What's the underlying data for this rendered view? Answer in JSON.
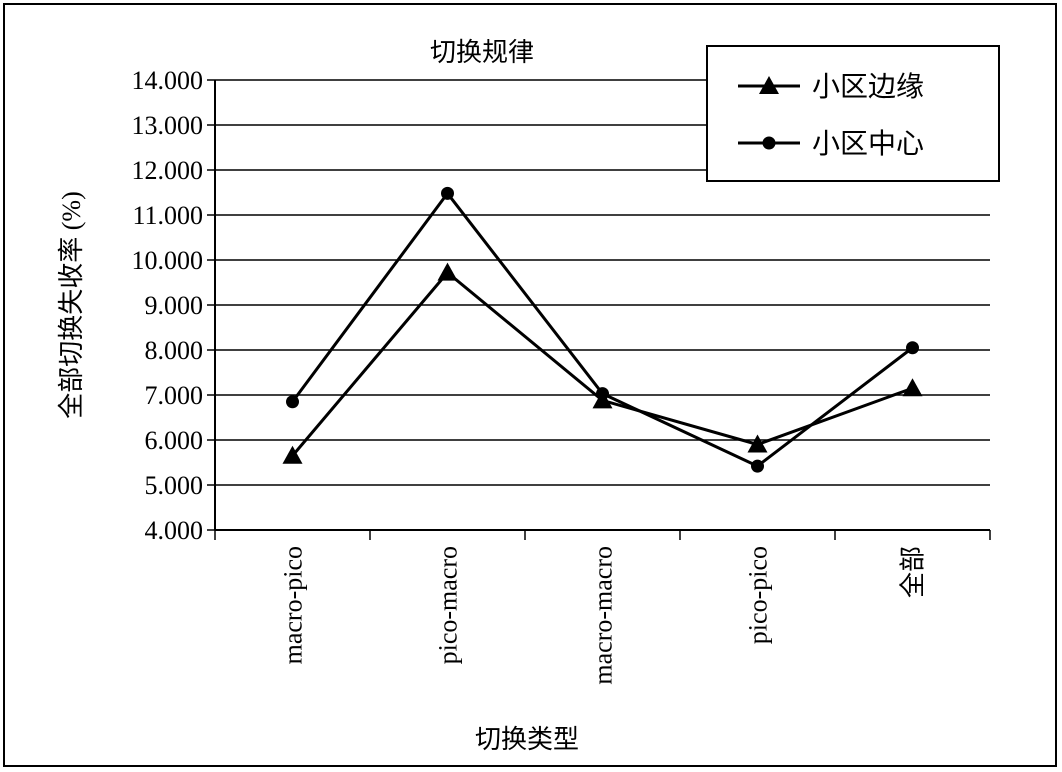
{
  "chart_data": {
    "type": "line",
    "title": "切换规律",
    "xlabel": "切换类型",
    "ylabel": "全部切换失收率 (%)",
    "categories": [
      "macro-pico",
      "pico-macro",
      "macro-macro",
      "pico-pico",
      "全部"
    ],
    "ylim": [
      4.0,
      14.0
    ],
    "yticks": [
      "4.000",
      "5.000",
      "6.000",
      "7.000",
      "8.000",
      "9.000",
      "10.000",
      "11.000",
      "12.000",
      "13.000",
      "14.000"
    ],
    "grid": true,
    "legend_position": "top-right",
    "series": [
      {
        "name": "小区边缘",
        "marker": "triangle",
        "color": "#000000",
        "values": [
          5.65,
          9.72,
          6.88,
          5.9,
          7.15
        ]
      },
      {
        "name": "小区中心",
        "marker": "circle",
        "color": "#000000",
        "values": [
          6.85,
          11.48,
          7.03,
          5.42,
          8.05
        ]
      }
    ]
  }
}
